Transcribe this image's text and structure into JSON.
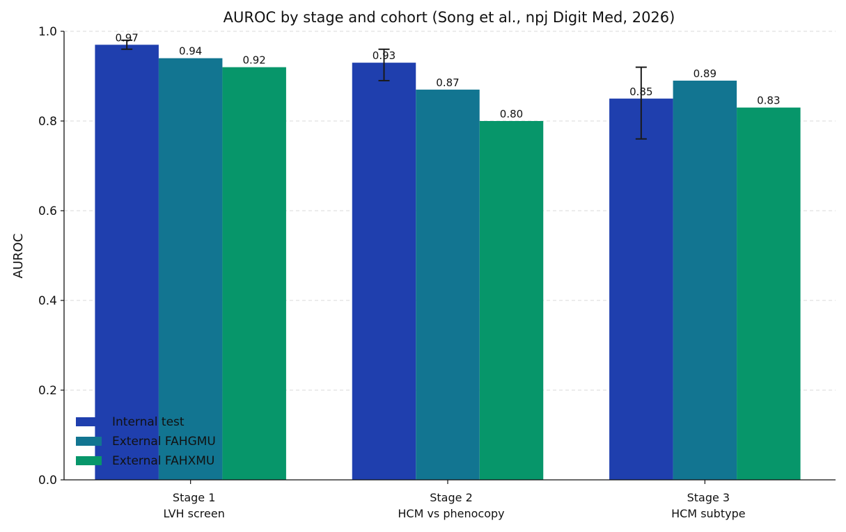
{
  "chart_data": {
    "type": "bar",
    "title": "AUROC by stage and cohort (Song et al., npj Digit Med, 2026)",
    "xlabel": "",
    "ylabel": "AUROC",
    "ylim": [
      0,
      1.0
    ],
    "yticks": [
      "0.0",
      "0.2",
      "0.4",
      "0.6",
      "0.8",
      "1.0"
    ],
    "grid": true,
    "legend_position": "lower-left",
    "categories": [
      [
        "Stage 1",
        "LVH screen"
      ],
      [
        "Stage 2",
        "HCM vs phenocopy"
      ],
      [
        "Stage 3",
        "HCM subtype"
      ]
    ],
    "series": [
      {
        "name": "Internal test",
        "color": "#1f3fae",
        "values": [
          0.97,
          0.93,
          0.85
        ],
        "labels": [
          "0.97",
          "0.93",
          "0.85"
        ],
        "error_low": [
          0.96,
          0.89,
          0.76
        ],
        "error_high": [
          0.98,
          0.96,
          0.92
        ]
      },
      {
        "name": "External FAHGMU",
        "color": "#127591",
        "values": [
          0.94,
          0.87,
          0.89
        ],
        "labels": [
          "0.94",
          "0.87",
          "0.89"
        ]
      },
      {
        "name": "External FAHXMU",
        "color": "#07966a",
        "values": [
          0.92,
          0.8,
          0.83
        ],
        "labels": [
          "0.92",
          "0.80",
          "0.83"
        ]
      }
    ]
  }
}
